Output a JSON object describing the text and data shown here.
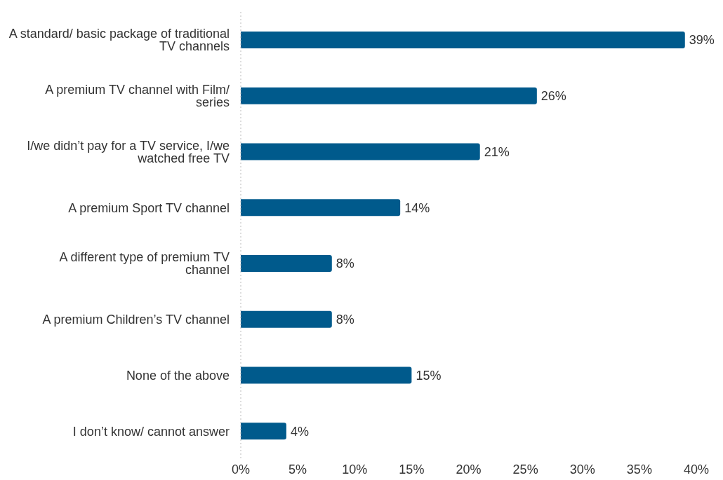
{
  "chart_data": {
    "type": "bar",
    "orientation": "horizontal",
    "categories": [
      "A standard/ basic package of traditional TV channels",
      "A premium TV channel with Film/ series",
      "I/we didn’t pay for a TV service, I/we watched free TV",
      "A premium Sport TV channel",
      "A different type of premium TV channel",
      "A premium Children’s TV channel",
      "None of the above",
      "I don’t know/ cannot answer"
    ],
    "values": [
      39,
      26,
      21,
      14,
      8,
      8,
      15,
      4
    ],
    "value_labels": [
      "39%",
      "26%",
      "21%",
      "14%",
      "8%",
      "8%",
      "15%",
      "4%"
    ],
    "color": "#005a8c",
    "xlim": [
      0,
      40
    ],
    "xticks": [
      {
        "value": 0,
        "label": "0%"
      },
      {
        "value": 5,
        "label": "5%"
      },
      {
        "value": 10,
        "label": "10%"
      },
      {
        "value": 15,
        "label": "15%"
      },
      {
        "value": 20,
        "label": "20%"
      },
      {
        "value": 25,
        "label": "25%"
      },
      {
        "value": 30,
        "label": "30%"
      },
      {
        "value": 35,
        "label": "35%"
      },
      {
        "value": 40,
        "label": "40%"
      }
    ],
    "grid": false
  }
}
